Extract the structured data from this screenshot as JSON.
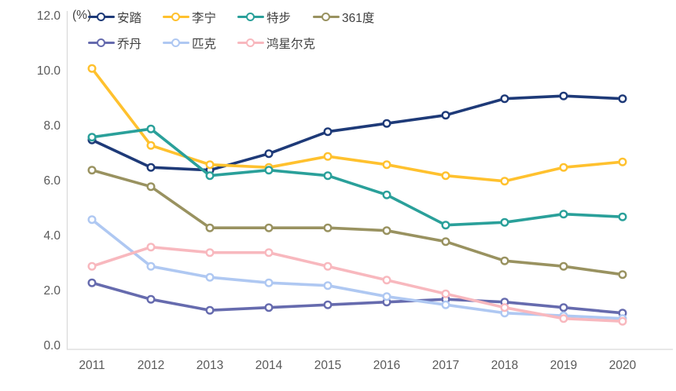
{
  "chart_data": {
    "type": "line",
    "unit_label": "(%)",
    "x_labels": [
      "2011",
      "2012",
      "2013",
      "2014",
      "2015",
      "2016",
      "2017",
      "2018",
      "2019",
      "2020"
    ],
    "y_ticks": [
      "12.0",
      "10.0",
      "8.0",
      "6.0",
      "4.0",
      "2.0",
      "0.0"
    ],
    "ylim": [
      0.0,
      12.0
    ],
    "grid": "off",
    "legend_position": "top",
    "axis_line_color": "#D9D9D9",
    "tick_text_color": "#595959",
    "series": [
      {
        "name": "安踏",
        "color": "#1E3A78",
        "values": [
          7.5,
          6.5,
          6.4,
          7.0,
          7.8,
          8.1,
          8.4,
          9.0,
          9.1,
          9.0
        ]
      },
      {
        "name": "李宁",
        "color": "#FFC12E",
        "values": [
          10.1,
          7.3,
          6.6,
          6.5,
          6.9,
          6.6,
          6.2,
          6.0,
          6.5,
          6.7
        ]
      },
      {
        "name": "特步",
        "color": "#2AA09A",
        "values": [
          7.6,
          7.9,
          6.2,
          6.4,
          6.2,
          5.5,
          4.4,
          4.5,
          4.8,
          4.7
        ]
      },
      {
        "name": "361度",
        "color": "#999260",
        "values": [
          6.4,
          5.8,
          4.3,
          4.3,
          4.3,
          4.2,
          3.8,
          3.1,
          2.9,
          2.6
        ]
      },
      {
        "name": "乔丹",
        "color": "#666BAE",
        "values": [
          2.3,
          1.7,
          1.3,
          1.4,
          1.5,
          1.6,
          1.7,
          1.6,
          1.4,
          1.2
        ]
      },
      {
        "name": "匹克",
        "color": "#AFC8F2",
        "values": [
          4.6,
          2.9,
          2.5,
          2.3,
          2.2,
          1.8,
          1.5,
          1.2,
          1.1,
          1.0
        ]
      },
      {
        "name": "鸿星尔克",
        "color": "#F8B8BE",
        "values": [
          2.9,
          3.6,
          3.4,
          3.4,
          2.9,
          2.4,
          1.9,
          1.4,
          1.0,
          0.9
        ]
      }
    ]
  }
}
